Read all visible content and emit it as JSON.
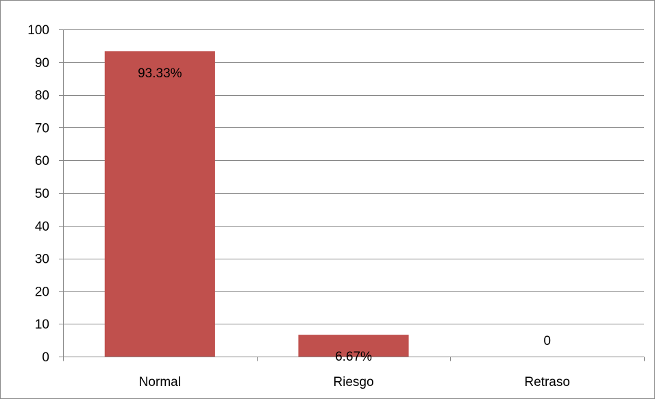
{
  "chart_data": {
    "type": "bar",
    "title": "",
    "xlabel": "",
    "ylabel": "",
    "categories": [
      "Normal",
      "Riesgo",
      "Retraso"
    ],
    "values": [
      93.33,
      6.67,
      0
    ],
    "data_labels": [
      "93.33%",
      "6.67%",
      "0"
    ],
    "ylim": [
      0,
      100
    ],
    "yticks": [
      0,
      10,
      20,
      30,
      40,
      50,
      60,
      70,
      80,
      90,
      100
    ],
    "grid": true,
    "legend": "none",
    "bar_color": "#C0504D",
    "gridline_color": "#868686"
  }
}
